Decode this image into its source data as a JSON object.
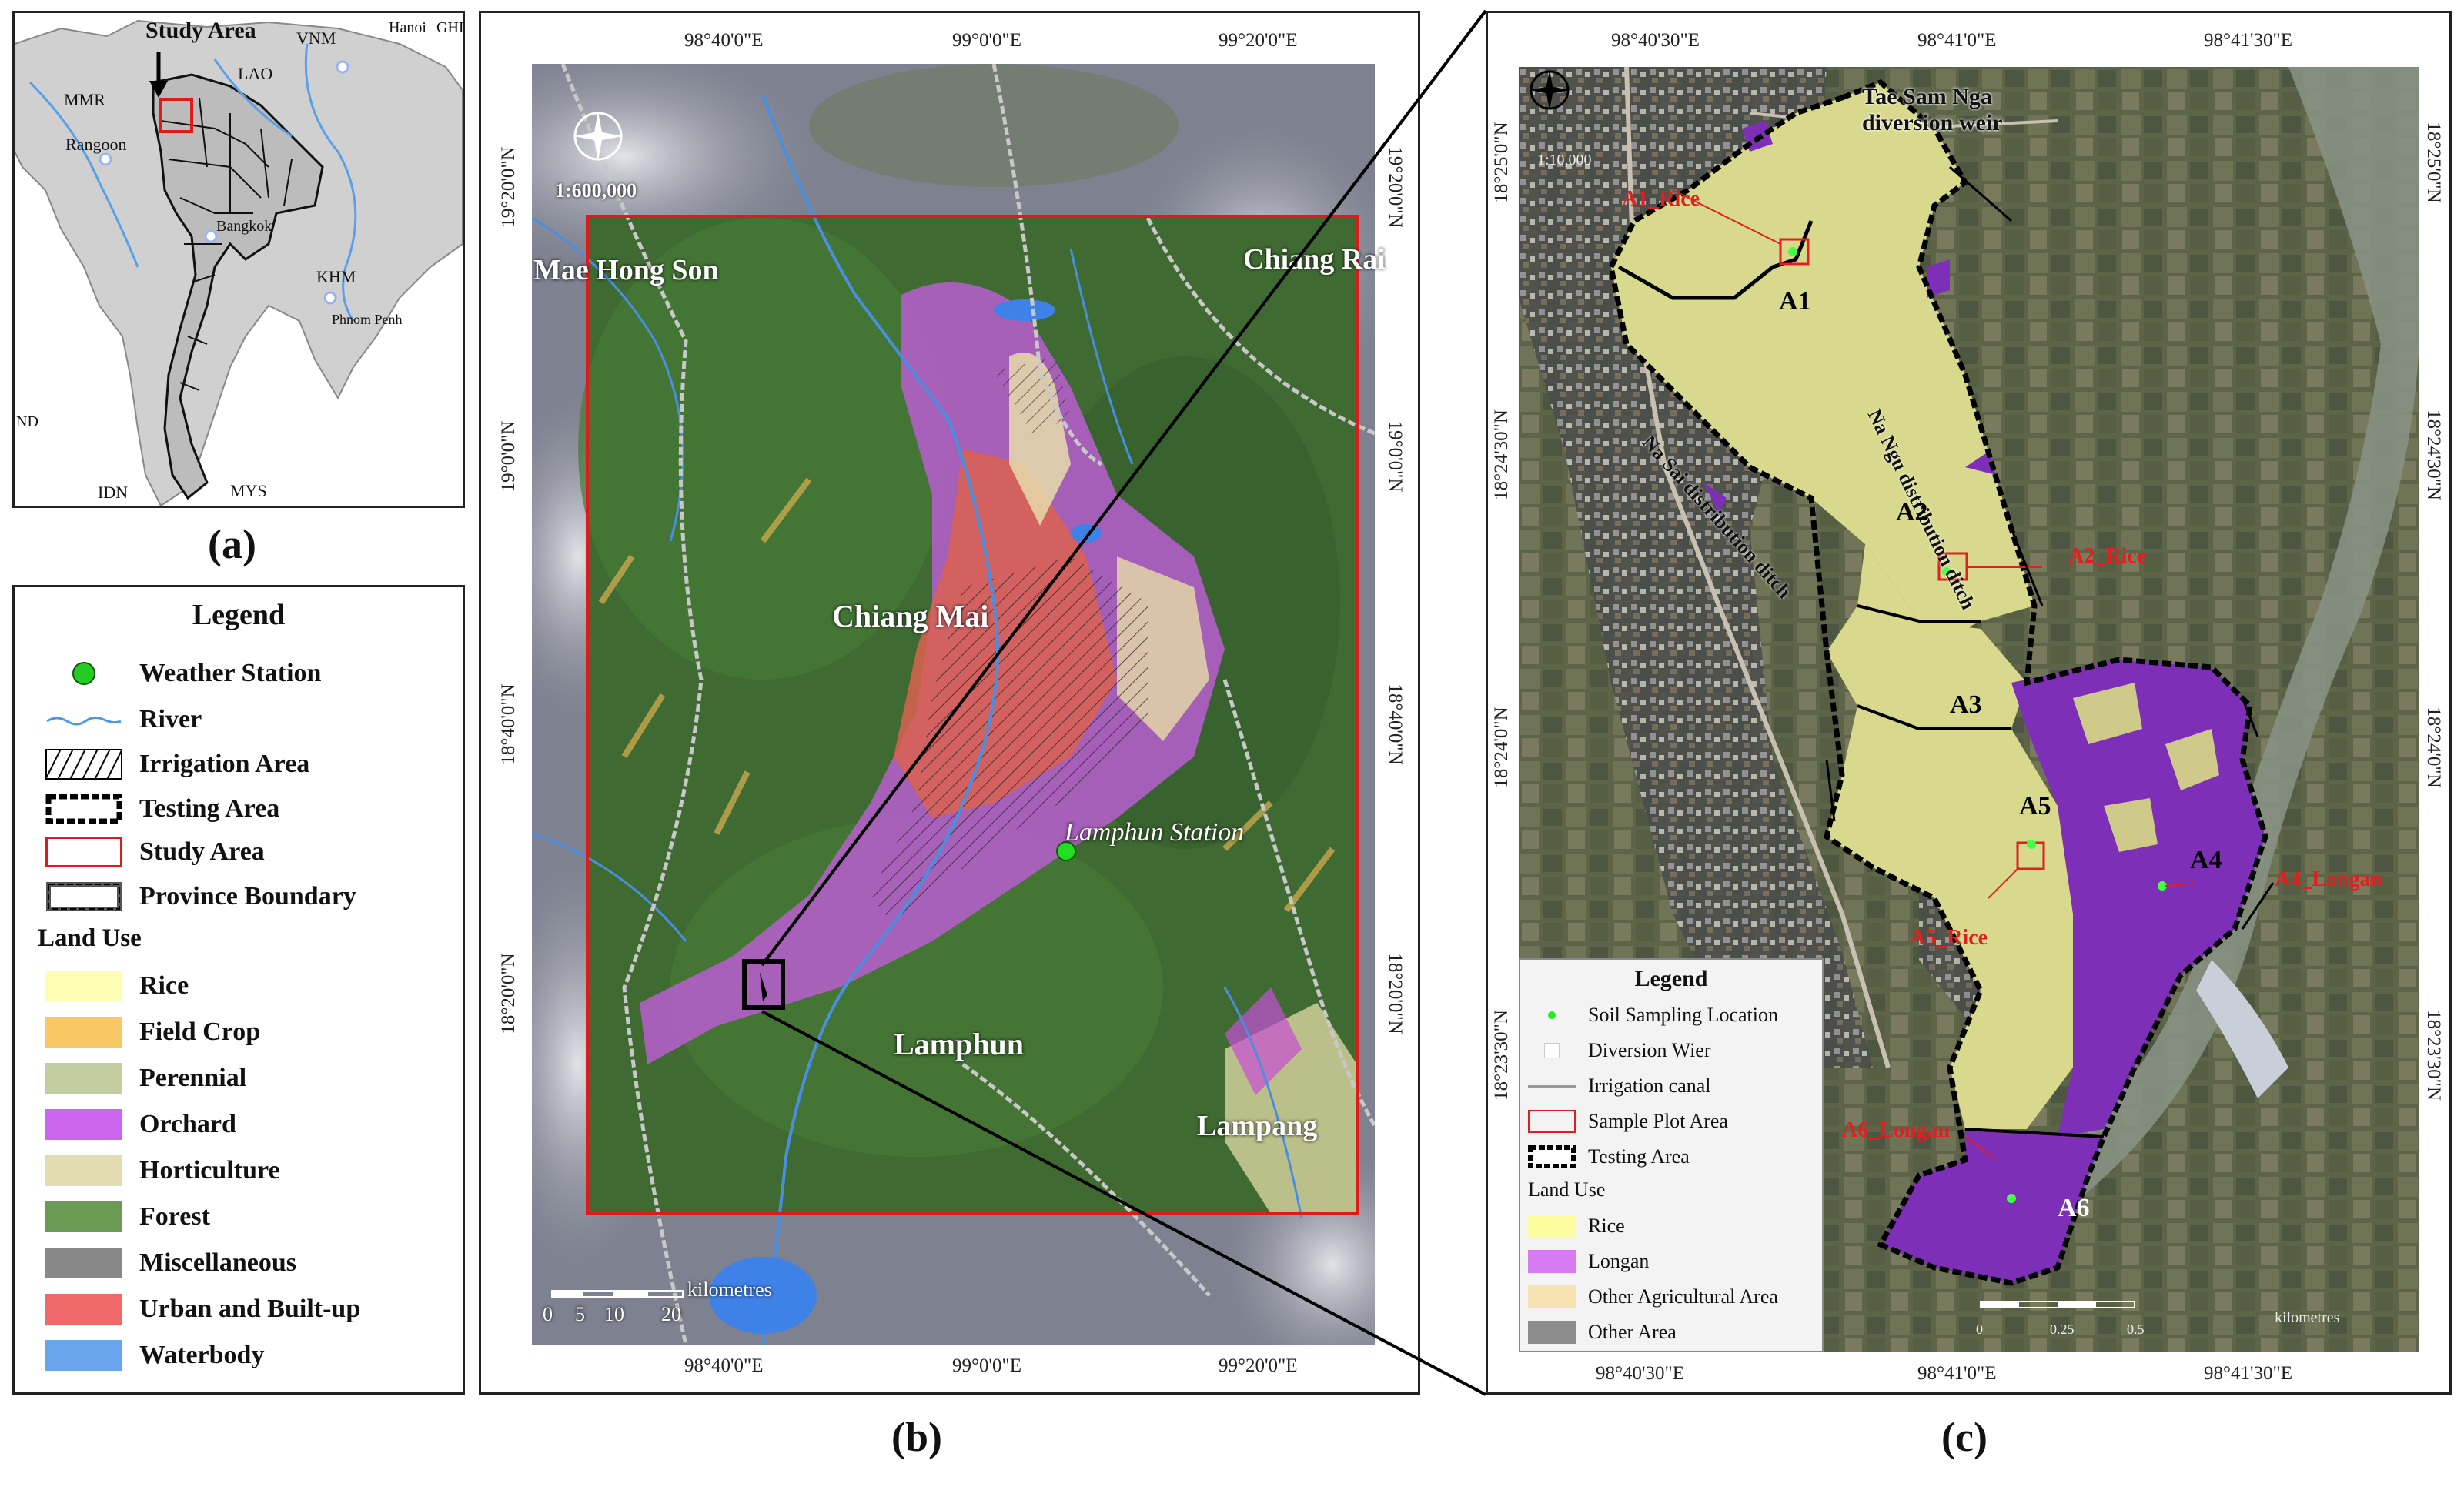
{
  "panel_a": {
    "label": "(a)",
    "map_labels": {
      "study_area": "Study Area",
      "vnm": "VNM",
      "hanoi": "Hanoi",
      "ghi": "GHI",
      "mmr": "MMR",
      "lao": "LAO",
      "rangoon": "Rangoon",
      "bangkok": "Bangkok",
      "khm": "KHM",
      "phnom_penh": "Phnom Penh",
      "nd": "ND",
      "idn": "IDN",
      "mys": "MYS"
    }
  },
  "legend_a": {
    "title": "Legend",
    "items": [
      {
        "label": "Weather Station",
        "symbol": "green-dot-icon"
      },
      {
        "label": "River",
        "symbol": "river-line-icon"
      },
      {
        "label": "Irrigation Area",
        "symbol": "hatch-icon"
      },
      {
        "label": "Testing Area",
        "symbol": "testing-area-icon"
      },
      {
        "label": "Study Area",
        "symbol": "red-box-icon"
      },
      {
        "label": "Province Boundary",
        "symbol": "province-boundary-icon"
      }
    ],
    "land_use_heading": "Land Use",
    "land_use": [
      {
        "label": "Rice",
        "color": "#fdfdb4"
      },
      {
        "label": "Field Crop",
        "color": "#f8c864"
      },
      {
        "label": "Perennial",
        "color": "#c3cda0"
      },
      {
        "label": "Orchard",
        "color": "#cc66ee"
      },
      {
        "label": "Horticulture",
        "color": "#e2dcb0"
      },
      {
        "label": "Forest",
        "color": "#6b9a55"
      },
      {
        "label": "Miscellaneous",
        "color": "#888888"
      },
      {
        "label": "Urban and Built-up",
        "color": "#ee6a6a"
      },
      {
        "label": "Waterbody",
        "color": "#6aa4ec"
      }
    ]
  },
  "panel_b": {
    "label": "(b)",
    "lon_ticks": [
      "98°40'0\"E",
      "99°0'0\"E",
      "99°20'0\"E"
    ],
    "lat_ticks": [
      "18°20'0\"N",
      "18°40'0\"N",
      "19°0'0\"N",
      "19°20'0\"N"
    ],
    "scale_ratio": "1:600,000",
    "scale_units": "kilometres",
    "scale_ticks": [
      "0",
      "5",
      "10",
      "20"
    ],
    "places": {
      "mae_hong_son": "Mae Hong Son",
      "chiang_rai": "Chiang Rai",
      "chiang_mai": "Chiang Mai",
      "lamphun_station": "Lamphun Station",
      "lamphun": "Lamphun",
      "lampang": "Lampang"
    }
  },
  "panel_c": {
    "label": "(c)",
    "lon_ticks": [
      "98°40'30\"E",
      "98°41'0\"E",
      "98°41'30\"E"
    ],
    "lat_ticks": [
      "18°25'0\"N",
      "18°24'30\"N",
      "18°24'0\"N",
      "18°23'30\"N"
    ],
    "scale_ratio": "1:10,000",
    "scale_units": "kilometres",
    "scale_ticks": [
      "0",
      "0.25",
      "0.5"
    ],
    "weir_label": "Tae Sam Nga\ndiversion weir",
    "ditch_na_ngu": "Na Ngu distribution ditch",
    "ditch_na_sai": "Na Sai distribution ditch",
    "zones": [
      "A1",
      "A2",
      "A3",
      "A4",
      "A5",
      "A6"
    ],
    "samples": {
      "a1": "A1_Rice",
      "a2": "A2_Rice",
      "a4": "A4_Longan",
      "a5": "A5_Rice",
      "a6": "A6_Longan"
    },
    "legend": {
      "title": "Legend",
      "items": [
        {
          "label": "Soil Sampling Location"
        },
        {
          "label": "Diversion Wier"
        },
        {
          "label": "Irrigation canal"
        },
        {
          "label": "Sample Plot Area"
        },
        {
          "label": "Testing Area"
        }
      ],
      "land_use_heading": "Land Use",
      "land_use": [
        {
          "label": "Rice",
          "color": "#fdfda0"
        },
        {
          "label": "Longan",
          "color": "#d77cf0"
        },
        {
          "label": "Other Agricultural Area",
          "color": "#f7e2b4"
        },
        {
          "label": "Other Area",
          "color": "#8c8c8c"
        }
      ]
    }
  }
}
